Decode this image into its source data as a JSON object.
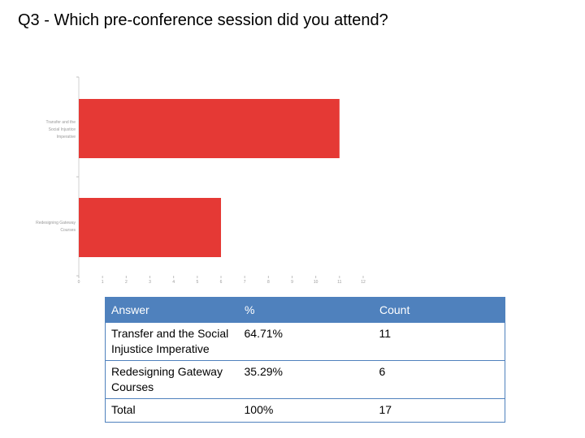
{
  "title": "Q3 - Which pre-conference session did you attend?",
  "chart_data": {
    "type": "bar",
    "orientation": "horizontal",
    "categories": [
      "Transfer and the Social Injustice Imperative",
      "Redesigning Gateway Courses"
    ],
    "values": [
      11,
      6
    ],
    "xlim": [
      0,
      12
    ],
    "xticks": [
      "0",
      "1",
      "2",
      "3",
      "4",
      "5",
      "6",
      "7",
      "8",
      "9",
      "10",
      "11",
      "12"
    ],
    "bar_color": "#e53935",
    "grid": false
  },
  "table": {
    "headers": [
      "Answer",
      "%",
      "Count"
    ],
    "rows": [
      {
        "answer": "Transfer and the Social Injustice Imperative",
        "percent": "64.71%",
        "count": "11"
      },
      {
        "answer": "Redesigning Gateway Courses",
        "percent": "35.29%",
        "count": "6"
      }
    ],
    "total": {
      "answer": "Total",
      "percent": "100%",
      "count": "17"
    }
  }
}
